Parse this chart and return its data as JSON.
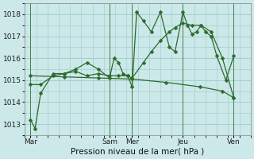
{
  "background_color": "#cce8e8",
  "line_color": "#2d6a2d",
  "grid_color": "#99cccc",
  "xlabel": "Pression niveau de la mer( hPa )",
  "xlabel_fontsize": 7.5,
  "ylim": [
    1012.5,
    1018.5
  ],
  "yticks": [
    1013,
    1014,
    1015,
    1016,
    1017,
    1018
  ],
  "xlim": [
    0,
    200
  ],
  "day_labels": [
    "Mar",
    "Sam",
    "Mer",
    "Jeu",
    "Ven"
  ],
  "day_positions": [
    5,
    75,
    95,
    140,
    185
  ],
  "vline_positions": [
    5,
    75,
    95,
    140,
    185
  ],
  "series1_x": [
    5,
    9,
    14,
    25,
    35,
    45,
    55,
    65,
    75,
    79,
    83,
    87,
    91,
    95,
    99,
    105,
    112,
    120,
    128,
    133,
    140,
    144,
    148,
    152,
    156,
    160,
    165,
    170,
    178,
    185
  ],
  "series1_y": [
    1013.2,
    1012.8,
    1014.4,
    1015.3,
    1015.3,
    1015.5,
    1015.8,
    1015.5,
    1015.1,
    1016.0,
    1015.8,
    1015.3,
    1015.2,
    1014.7,
    1018.1,
    1017.7,
    1017.2,
    1018.1,
    1016.5,
    1016.3,
    1018.1,
    1017.5,
    1017.1,
    1017.2,
    1017.5,
    1017.2,
    1017.0,
    1016.1,
    1015.0,
    1016.1
  ],
  "series2_x": [
    5,
    14,
    25,
    35,
    45,
    55,
    65,
    75,
    83,
    91,
    95,
    105,
    112,
    120,
    128,
    133,
    140,
    148,
    156,
    165,
    175,
    185
  ],
  "series2_y": [
    1014.8,
    1014.8,
    1015.2,
    1015.3,
    1015.4,
    1015.2,
    1015.3,
    1015.2,
    1015.2,
    1015.2,
    1015.1,
    1015.8,
    1016.3,
    1016.8,
    1017.2,
    1017.4,
    1017.6,
    1017.5,
    1017.5,
    1017.2,
    1016.0,
    1014.2
  ],
  "series3_x": [
    5,
    35,
    65,
    95,
    125,
    155,
    175,
    185
  ],
  "series3_y": [
    1015.2,
    1015.15,
    1015.1,
    1015.05,
    1014.9,
    1014.7,
    1014.5,
    1014.2
  ],
  "marker_size": 2.5,
  "linewidth": 0.9,
  "tick_fontsize": 6.5
}
